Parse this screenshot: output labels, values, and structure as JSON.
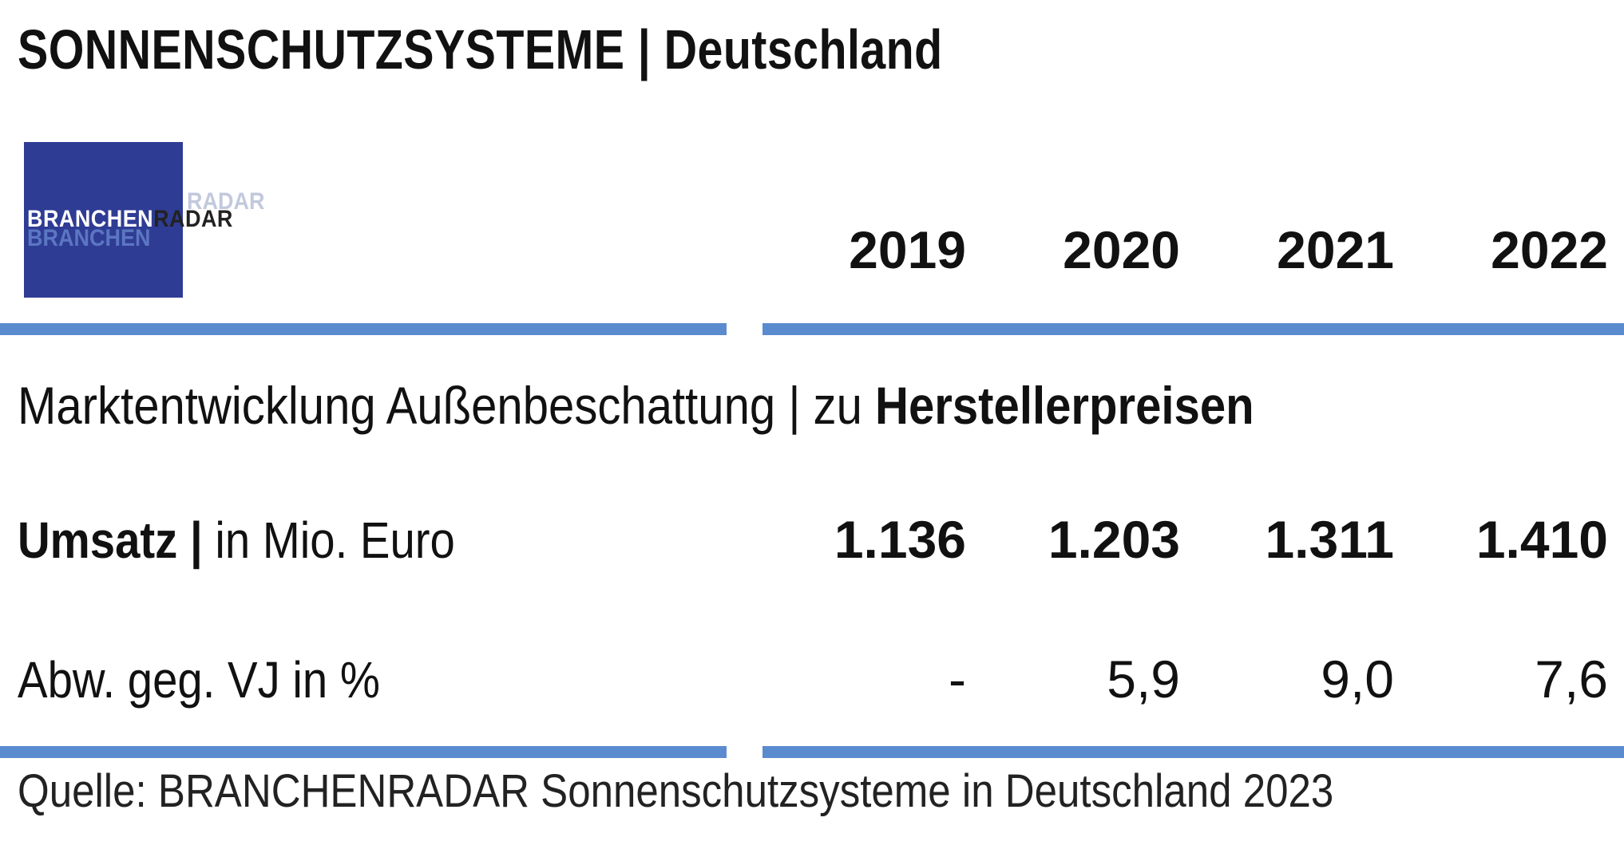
{
  "header": {
    "title": "SONNENSCHUTZSYSTEME | Deutschland"
  },
  "logo": {
    "part1": "BRANCHEN",
    "part2": "RADAR",
    "shadow1": "BRANCHEN",
    "shadow2": "RADAR",
    "color": "#2f3c94"
  },
  "subtitle": {
    "normal": "Marktentwicklung Außenbeschattung | zu ",
    "bold": "Herstellerpreisen"
  },
  "chart_data": {
    "type": "table",
    "columns": [
      "2019",
      "2020",
      "2021",
      "2022"
    ],
    "rows": [
      {
        "label_bold": "Umsatz |",
        "label_normal": " in Mio. Euro",
        "values": [
          "1.136",
          "1.203",
          "1.311",
          "1.410"
        ]
      },
      {
        "label_bold": "",
        "label_normal": "Abw. geg. VJ in %",
        "values": [
          "-",
          "5,9",
          "9,0",
          "7,6"
        ]
      }
    ]
  },
  "source": "Quelle: BRANCHENRADAR Sonnenschutzsysteme in Deutschland 2023",
  "colors": {
    "rule": "#5b8bcf",
    "text": "#111111"
  }
}
